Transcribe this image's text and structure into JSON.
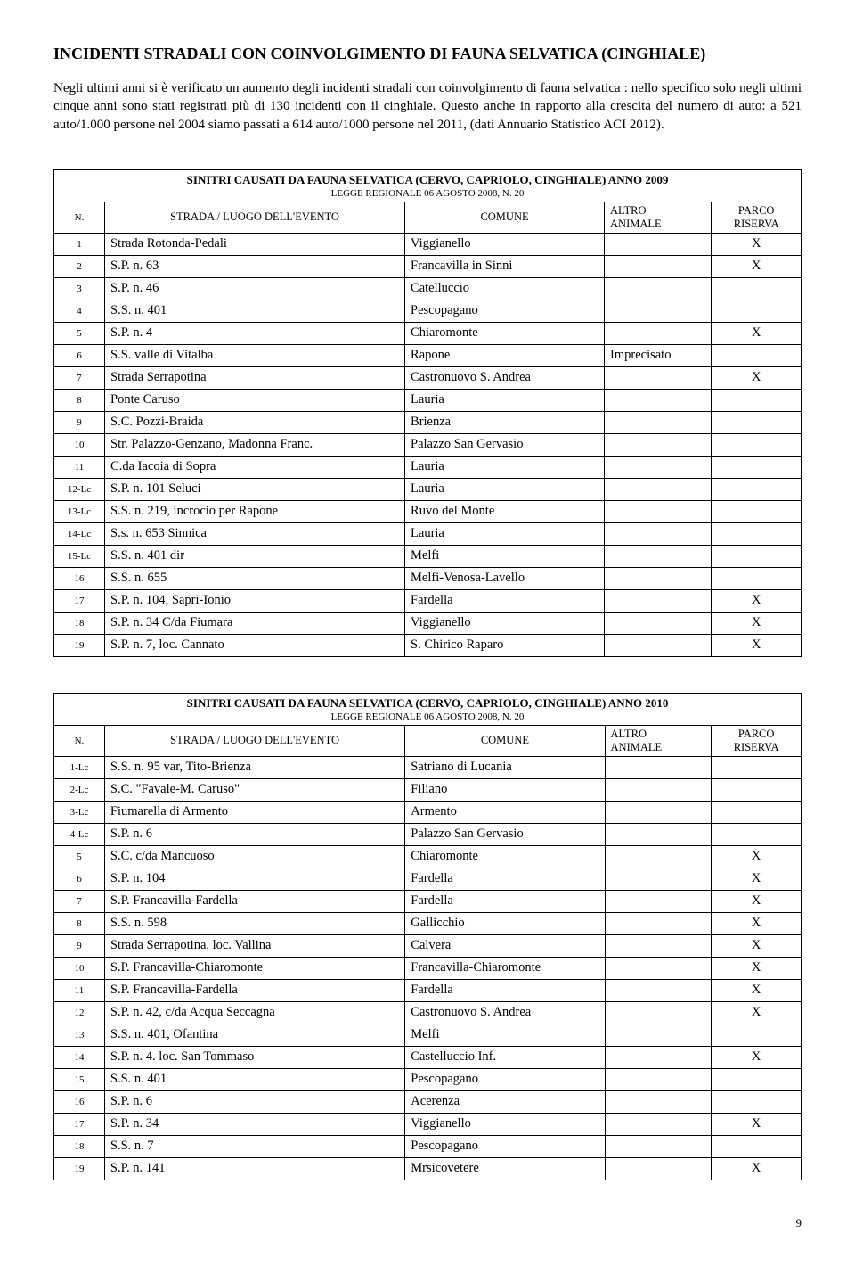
{
  "heading": "INCIDENTI STRADALI CON COINVOLGIMENTO DI FAUNA SELVATICA (CINGHIALE)",
  "intro": "Negli ultimi anni si è verificato un aumento degli incidenti stradali con coinvolgimento di fauna selvatica : nello specifico solo negli ultimi cinque anni sono stati registrati più di 130 incidenti con il cinghiale. Questo anche in rapporto alla crescita del numero di auto: a 521 auto/1.000 persone nel 2004 siamo passati a 614 auto/1000 persone nel 2011, (dati Annuario Statistico ACI 2012).",
  "columns": {
    "n": "N.",
    "strada": "STRADA / LUOGO DELL'EVENTO",
    "comune": "COMUNE",
    "altro1": "ALTRO",
    "altro2": "ANIMALE",
    "parco1": "PARCO",
    "parco2": "RISERVA"
  },
  "tables": [
    {
      "title": "SINITRI CAUSATI DA FAUNA SELVATICA (CERVO, CAPRIOLO, CINGHIALE) ANNO 2009",
      "subtitle": "LEGGE REGIONALE 06 AGOSTO 2008, N. 20",
      "rows": [
        {
          "n": "1",
          "strada": "Strada Rotonda-Pedali",
          "comune": "Viggianello",
          "altro": "",
          "parco": "X"
        },
        {
          "n": "2",
          "strada": "S.P. n. 63",
          "comune": "Francavilla in Sinni",
          "altro": "",
          "parco": "X"
        },
        {
          "n": "3",
          "strada": "S.P. n. 46",
          "comune": "Catelluccio",
          "altro": "",
          "parco": ""
        },
        {
          "n": "4",
          "strada": "S.S. n. 401",
          "comune": "Pescopagano",
          "altro": "",
          "parco": ""
        },
        {
          "n": "5",
          "strada": "S.P. n. 4",
          "comune": "Chiaromonte",
          "altro": "",
          "parco": "X"
        },
        {
          "n": "6",
          "strada": "S.S. valle di Vitalba",
          "comune": "Rapone",
          "altro": "Imprecisato",
          "parco": ""
        },
        {
          "n": "7",
          "strada": "Strada Serrapotina",
          "comune": "Castronuovo S. Andrea",
          "altro": "",
          "parco": "X"
        },
        {
          "n": "8",
          "strada": "Ponte Caruso",
          "comune": "Lauria",
          "altro": "",
          "parco": ""
        },
        {
          "n": "9",
          "strada": "S.C. Pozzi-Braida",
          "comune": "Brienza",
          "altro": "",
          "parco": ""
        },
        {
          "n": "10",
          "strada": "Str. Palazzo-Genzano, Madonna Franc.",
          "comune": "Palazzo San Gervasio",
          "altro": "",
          "parco": ""
        },
        {
          "n": "11",
          "strada": "C.da Iacoia di Sopra",
          "comune": "Lauria",
          "altro": "",
          "parco": ""
        },
        {
          "n": "12-Lc",
          "strada": "S.P. n. 101 Seluci",
          "comune": "Lauria",
          "altro": "",
          "parco": ""
        },
        {
          "n": "13-Lc",
          "strada": "S.S. n. 219, incrocio per Rapone",
          "comune": "Ruvo del Monte",
          "altro": "",
          "parco": ""
        },
        {
          "n": "14-Lc",
          "strada": "S.s. n. 653 Sinnica",
          "comune": "Lauria",
          "altro": "",
          "parco": ""
        },
        {
          "n": "15-Lc",
          "strada": "S.S. n. 401 dir",
          "comune": "Melfi",
          "altro": "",
          "parco": ""
        },
        {
          "n": "16",
          "strada": "S.S. n. 655",
          "comune": "Melfi-Venosa-Lavello",
          "altro": "",
          "parco": ""
        },
        {
          "n": "17",
          "strada": "S.P. n. 104, Sapri-Ionio",
          "comune": "Fardella",
          "altro": "",
          "parco": "X"
        },
        {
          "n": "18",
          "strada": "S.P. n. 34 C/da Fiumara",
          "comune": "Viggianello",
          "altro": "",
          "parco": "X"
        },
        {
          "n": "19",
          "strada": "S.P. n. 7, loc. Cannato",
          "comune": "S. Chirico Raparo",
          "altro": "",
          "parco": "X"
        }
      ]
    },
    {
      "title": "SINITRI CAUSATI DA FAUNA SELVATICA (CERVO, CAPRIOLO, CINGHIALE) ANNO 2010",
      "subtitle": "LEGGE REGIONALE 06 AGOSTO 2008, N. 20",
      "rows": [
        {
          "n": "1-Lc",
          "strada": "S.S. n. 95 var, Tito-Brienza",
          "comune": "Satriano di Lucania",
          "altro": "",
          "parco": ""
        },
        {
          "n": "2-Lc",
          "strada": "S.C. \"Favale-M. Caruso\"",
          "comune": "Filiano",
          "altro": "",
          "parco": ""
        },
        {
          "n": "3-Lc",
          "strada": "Fiumarella di Armento",
          "comune": "Armento",
          "altro": "",
          "parco": ""
        },
        {
          "n": "4-Lc",
          "strada": "S.P. n. 6",
          "comune": "Palazzo San Gervasio",
          "altro": "",
          "parco": ""
        },
        {
          "n": "5",
          "strada": "S.C. c/da Mancuoso",
          "comune": "Chiaromonte",
          "altro": "",
          "parco": "X"
        },
        {
          "n": "6",
          "strada": "S.P. n. 104",
          "comune": "Fardella",
          "altro": "",
          "parco": "X"
        },
        {
          "n": "7",
          "strada": "S.P. Francavilla-Fardella",
          "comune": "Fardella",
          "altro": "",
          "parco": "X"
        },
        {
          "n": "8",
          "strada": "S.S. n. 598",
          "comune": "Gallicchio",
          "altro": "",
          "parco": "X"
        },
        {
          "n": "9",
          "strada": "Strada Serrapotina, loc. Vallina",
          "comune": "Calvera",
          "altro": "",
          "parco": "X"
        },
        {
          "n": "10",
          "strada": "S.P. Francavilla-Chiaromonte",
          "comune": "Francavilla-Chiaromonte",
          "altro": "",
          "parco": "X"
        },
        {
          "n": "11",
          "strada": "S.P. Francavilla-Fardella",
          "comune": "Fardella",
          "altro": "",
          "parco": "X"
        },
        {
          "n": "12",
          "strada": "S.P. n. 42, c/da Acqua Seccagna",
          "comune": "Castronuovo S. Andrea",
          "altro": "",
          "parco": "X"
        },
        {
          "n": "13",
          "strada": "S.S. n. 401, Ofantina",
          "comune": "Melfi",
          "altro": "",
          "parco": ""
        },
        {
          "n": "14",
          "strada": "S.P. n. 4. loc. San Tommaso",
          "comune": "Castelluccio Inf.",
          "altro": "",
          "parco": "X"
        },
        {
          "n": "15",
          "strada": "S.S. n. 401",
          "comune": "Pescopagano",
          "altro": "",
          "parco": ""
        },
        {
          "n": "16",
          "strada": "S.P. n. 6",
          "comune": "Acerenza",
          "altro": "",
          "parco": ""
        },
        {
          "n": "17",
          "strada": "S.P. n. 34",
          "comune": "Viggianello",
          "altro": "",
          "parco": "X"
        },
        {
          "n": "18",
          "strada": "S.S. n. 7",
          "comune": "Pescopagano",
          "altro": "",
          "parco": ""
        },
        {
          "n": "19",
          "strada": "S.P. n. 141",
          "comune": "Mrsicovetere",
          "altro": "",
          "parco": "X"
        }
      ]
    }
  ],
  "page_number": "9"
}
